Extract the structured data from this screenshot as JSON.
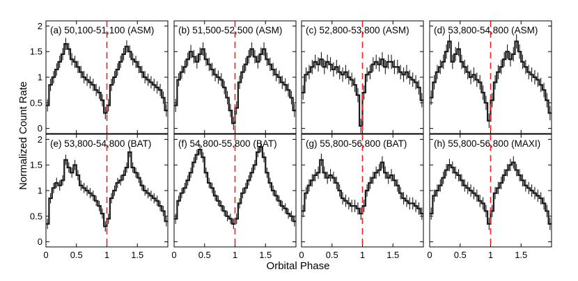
{
  "chart_data": {
    "type": "line",
    "xlabel": "Orbital Phase",
    "ylabel": "Normalized Count Rate",
    "xlim": [
      0,
      2
    ],
    "ylim": [
      -0.1,
      2.1
    ],
    "x_ticks": [
      0,
      0.5,
      1,
      1.5
    ],
    "x_tick_labels": [
      "0",
      "0.5",
      "1",
      "1.5"
    ],
    "y_ticks": [
      0,
      0.5,
      1,
      1.5,
      2
    ],
    "y_tick_labels": [
      "0",
      "0.5",
      "1",
      "1.5",
      "2"
    ],
    "reference_line": {
      "x": 1,
      "style": "dashed",
      "color": "#e8231f"
    },
    "line_color": "#1a1a1a",
    "grid": false,
    "layout": "2 rows x 4 columns, shared axes",
    "panels": [
      {
        "label": "(a) 50,100-51,100 (ASM)",
        "x": [
          0.025,
          0.075,
          0.125,
          0.175,
          0.225,
          0.275,
          0.325,
          0.375,
          0.425,
          0.475,
          0.525,
          0.575,
          0.625,
          0.675,
          0.725,
          0.775,
          0.825,
          0.875,
          0.925,
          0.975,
          1.025,
          1.075,
          1.125,
          1.175,
          1.225,
          1.275,
          1.325,
          1.375,
          1.425,
          1.475,
          1.525,
          1.575,
          1.625,
          1.675,
          1.725,
          1.775,
          1.825,
          1.875,
          1.925,
          1.975
        ],
        "y": [
          0.45,
          0.85,
          1.0,
          1.15,
          1.3,
          1.45,
          1.65,
          1.55,
          1.35,
          1.3,
          1.2,
          1.1,
          1.0,
          0.95,
          0.9,
          0.85,
          0.75,
          0.7,
          0.55,
          0.3,
          0.45,
          0.85,
          1.0,
          1.15,
          1.3,
          1.45,
          1.6,
          1.5,
          1.35,
          1.3,
          1.2,
          1.1,
          1.0,
          0.95,
          0.9,
          0.85,
          0.8,
          0.75,
          0.6,
          0.35
        ],
        "err": [
          0.12,
          0.12,
          0.12,
          0.12,
          0.12,
          0.12,
          0.12,
          0.12,
          0.12,
          0.12,
          0.12,
          0.12,
          0.12,
          0.12,
          0.12,
          0.12,
          0.12,
          0.12,
          0.12,
          0.12,
          0.12,
          0.12,
          0.12,
          0.12,
          0.12,
          0.12,
          0.12,
          0.12,
          0.12,
          0.12,
          0.12,
          0.12,
          0.12,
          0.12,
          0.12,
          0.12,
          0.12,
          0.12,
          0.12,
          0.12
        ]
      },
      {
        "label": "(b) 51,500-52,500 (ASM)",
        "x": [
          0.025,
          0.075,
          0.125,
          0.175,
          0.225,
          0.275,
          0.325,
          0.375,
          0.425,
          0.475,
          0.525,
          0.575,
          0.625,
          0.675,
          0.725,
          0.775,
          0.825,
          0.875,
          0.925,
          0.975,
          1.025,
          1.075,
          1.125,
          1.175,
          1.225,
          1.275,
          1.325,
          1.375,
          1.425,
          1.475,
          1.525,
          1.575,
          1.625,
          1.675,
          1.725,
          1.775,
          1.825,
          1.875,
          1.925,
          1.975
        ],
        "y": [
          0.45,
          0.95,
          1.1,
          1.2,
          1.35,
          1.5,
          1.4,
          1.3,
          1.45,
          1.55,
          1.35,
          1.25,
          1.15,
          1.05,
          1.0,
          0.95,
          0.8,
          0.6,
          0.35,
          0.1,
          0.4,
          0.9,
          1.1,
          1.25,
          1.4,
          1.55,
          1.4,
          1.3,
          1.45,
          1.55,
          1.35,
          1.25,
          1.15,
          1.05,
          1.0,
          0.9,
          0.85,
          0.75,
          0.6,
          0.35
        ],
        "err": [
          0.13,
          0.13,
          0.13,
          0.13,
          0.13,
          0.13,
          0.13,
          0.13,
          0.13,
          0.13,
          0.13,
          0.13,
          0.13,
          0.13,
          0.13,
          0.13,
          0.13,
          0.13,
          0.13,
          0.13,
          0.13,
          0.13,
          0.13,
          0.13,
          0.13,
          0.13,
          0.13,
          0.13,
          0.13,
          0.13,
          0.13,
          0.13,
          0.13,
          0.13,
          0.13,
          0.13,
          0.13,
          0.13,
          0.13,
          0.13
        ]
      },
      {
        "label": "(c) 52,800-53,800 (ASM)",
        "x": [
          0.025,
          0.075,
          0.125,
          0.175,
          0.225,
          0.275,
          0.325,
          0.375,
          0.425,
          0.475,
          0.525,
          0.575,
          0.625,
          0.675,
          0.725,
          0.775,
          0.825,
          0.875,
          0.925,
          0.975,
          1.025,
          1.075,
          1.125,
          1.175,
          1.225,
          1.275,
          1.325,
          1.375,
          1.425,
          1.475,
          1.525,
          1.575,
          1.625,
          1.675,
          1.725,
          1.775,
          1.825,
          1.875,
          1.925,
          1.975
        ],
        "y": [
          0.7,
          1.05,
          1.1,
          1.2,
          1.3,
          1.25,
          1.35,
          1.2,
          1.3,
          1.25,
          1.15,
          1.2,
          1.1,
          1.05,
          1.1,
          1.0,
          0.95,
          0.85,
          0.65,
          0.05,
          0.7,
          1.05,
          1.1,
          1.25,
          1.3,
          1.25,
          1.35,
          1.2,
          1.3,
          1.3,
          1.2,
          1.2,
          1.1,
          1.05,
          1.1,
          1.0,
          0.95,
          0.9,
          0.8,
          0.55
        ],
        "err": [
          0.14,
          0.14,
          0.14,
          0.14,
          0.14,
          0.14,
          0.14,
          0.14,
          0.14,
          0.14,
          0.14,
          0.14,
          0.14,
          0.14,
          0.14,
          0.14,
          0.14,
          0.14,
          0.14,
          0.14,
          0.14,
          0.14,
          0.14,
          0.14,
          0.14,
          0.14,
          0.14,
          0.14,
          0.14,
          0.14,
          0.14,
          0.14,
          0.14,
          0.14,
          0.14,
          0.14,
          0.14,
          0.14,
          0.14,
          0.14
        ]
      },
      {
        "label": "(d) 53,800-54,800 (ASM)",
        "x": [
          0.025,
          0.075,
          0.125,
          0.175,
          0.225,
          0.275,
          0.325,
          0.375,
          0.425,
          0.475,
          0.525,
          0.575,
          0.625,
          0.675,
          0.725,
          0.775,
          0.825,
          0.875,
          0.925,
          0.975,
          1.025,
          1.075,
          1.125,
          1.175,
          1.225,
          1.275,
          1.325,
          1.375,
          1.425,
          1.475,
          1.525,
          1.575,
          1.625,
          1.675,
          1.725,
          1.775,
          1.825,
          1.875,
          1.925,
          1.975
        ],
        "y": [
          0.6,
          0.9,
          1.1,
          1.2,
          1.3,
          1.5,
          1.7,
          1.3,
          1.45,
          1.55,
          1.3,
          1.2,
          1.1,
          1.0,
          1.05,
          0.95,
          0.9,
          0.7,
          0.5,
          0.15,
          0.55,
          0.9,
          1.1,
          1.2,
          1.35,
          1.5,
          1.35,
          1.45,
          1.7,
          1.5,
          1.3,
          1.2,
          1.1,
          1.05,
          1.0,
          0.95,
          0.85,
          0.75,
          0.55,
          0.3
        ],
        "err": [
          0.14,
          0.14,
          0.14,
          0.14,
          0.14,
          0.14,
          0.14,
          0.14,
          0.14,
          0.14,
          0.14,
          0.14,
          0.14,
          0.14,
          0.14,
          0.14,
          0.14,
          0.14,
          0.14,
          0.14,
          0.14,
          0.14,
          0.14,
          0.14,
          0.14,
          0.14,
          0.14,
          0.14,
          0.14,
          0.14,
          0.14,
          0.14,
          0.14,
          0.14,
          0.14,
          0.14,
          0.14,
          0.14,
          0.14,
          0.14
        ]
      },
      {
        "label": "(e) 53,800-54,800 (BAT)",
        "x": [
          0.025,
          0.075,
          0.125,
          0.175,
          0.225,
          0.275,
          0.325,
          0.375,
          0.425,
          0.475,
          0.525,
          0.575,
          0.625,
          0.675,
          0.725,
          0.775,
          0.825,
          0.875,
          0.925,
          0.975,
          1.025,
          1.075,
          1.125,
          1.175,
          1.225,
          1.275,
          1.325,
          1.375,
          1.425,
          1.475,
          1.525,
          1.575,
          1.625,
          1.675,
          1.725,
          1.775,
          1.825,
          1.875,
          1.925,
          1.975
        ],
        "y": [
          0.35,
          0.85,
          1.05,
          1.15,
          1.1,
          1.2,
          1.6,
          1.45,
          1.35,
          1.5,
          1.3,
          1.1,
          1.05,
          1.0,
          0.95,
          0.9,
          0.8,
          0.7,
          0.55,
          0.3,
          0.45,
          0.85,
          1.0,
          1.15,
          1.2,
          1.3,
          1.45,
          1.75,
          1.45,
          1.35,
          1.25,
          1.1,
          1.0,
          0.95,
          0.9,
          0.85,
          0.8,
          0.7,
          0.6,
          0.4
        ],
        "err": [
          0.1,
          0.1,
          0.1,
          0.1,
          0.1,
          0.1,
          0.1,
          0.1,
          0.1,
          0.1,
          0.1,
          0.1,
          0.1,
          0.1,
          0.1,
          0.1,
          0.1,
          0.1,
          0.1,
          0.1,
          0.1,
          0.1,
          0.1,
          0.1,
          0.1,
          0.1,
          0.1,
          0.1,
          0.1,
          0.1,
          0.1,
          0.1,
          0.1,
          0.1,
          0.1,
          0.1,
          0.1,
          0.1,
          0.1,
          0.1
        ]
      },
      {
        "label": "(f) 54,800-55,800 (BAT)",
        "x": [
          0.025,
          0.075,
          0.125,
          0.175,
          0.225,
          0.275,
          0.325,
          0.375,
          0.425,
          0.475,
          0.525,
          0.575,
          0.625,
          0.675,
          0.725,
          0.775,
          0.825,
          0.875,
          0.925,
          0.975,
          1.025,
          1.075,
          1.125,
          1.175,
          1.225,
          1.275,
          1.325,
          1.375,
          1.425,
          1.475,
          1.525,
          1.575,
          1.625,
          1.675,
          1.725,
          1.775,
          1.825,
          1.875,
          1.925,
          1.975
        ],
        "y": [
          0.45,
          0.8,
          0.95,
          1.05,
          1.2,
          1.35,
          1.55,
          1.7,
          1.8,
          1.65,
          1.35,
          1.15,
          1.05,
          0.9,
          0.8,
          0.7,
          0.6,
          0.5,
          0.45,
          0.35,
          0.45,
          0.75,
          0.95,
          1.05,
          1.2,
          1.35,
          1.5,
          1.75,
          1.85,
          1.65,
          1.35,
          1.15,
          1.0,
          0.9,
          0.8,
          0.7,
          0.65,
          0.55,
          0.5,
          0.4
        ],
        "err": [
          0.1,
          0.1,
          0.1,
          0.1,
          0.1,
          0.1,
          0.1,
          0.1,
          0.1,
          0.1,
          0.1,
          0.1,
          0.1,
          0.1,
          0.1,
          0.1,
          0.1,
          0.1,
          0.1,
          0.1,
          0.1,
          0.1,
          0.1,
          0.1,
          0.1,
          0.1,
          0.1,
          0.1,
          0.1,
          0.1,
          0.1,
          0.1,
          0.1,
          0.1,
          0.1,
          0.1,
          0.1,
          0.1,
          0.1,
          0.1
        ]
      },
      {
        "label": "(g) 55,800-56,800 (BAT)",
        "x": [
          0.025,
          0.075,
          0.125,
          0.175,
          0.225,
          0.275,
          0.325,
          0.375,
          0.425,
          0.475,
          0.525,
          0.575,
          0.625,
          0.675,
          0.725,
          0.775,
          0.825,
          0.875,
          0.925,
          0.975,
          1.025,
          1.075,
          1.125,
          1.175,
          1.225,
          1.275,
          1.325,
          1.375,
          1.425,
          1.475,
          1.525,
          1.575,
          1.625,
          1.675,
          1.725,
          1.775,
          1.825,
          1.875,
          1.925,
          1.975
        ],
        "y": [
          0.6,
          0.95,
          1.1,
          1.2,
          1.3,
          1.35,
          1.6,
          1.35,
          1.25,
          1.3,
          1.25,
          1.15,
          1.0,
          0.85,
          0.8,
          0.75,
          0.7,
          0.7,
          0.65,
          0.55,
          0.7,
          1.0,
          1.15,
          1.25,
          1.35,
          1.4,
          1.55,
          1.35,
          1.25,
          1.3,
          1.2,
          1.1,
          0.95,
          0.85,
          0.8,
          0.75,
          0.75,
          0.7,
          0.65,
          0.55
        ],
        "err": [
          0.12,
          0.12,
          0.12,
          0.12,
          0.12,
          0.12,
          0.12,
          0.12,
          0.12,
          0.12,
          0.12,
          0.12,
          0.12,
          0.12,
          0.12,
          0.12,
          0.12,
          0.12,
          0.12,
          0.12,
          0.12,
          0.12,
          0.12,
          0.12,
          0.12,
          0.12,
          0.12,
          0.12,
          0.12,
          0.12,
          0.12,
          0.12,
          0.12,
          0.12,
          0.12,
          0.12,
          0.12,
          0.12,
          0.12,
          0.12
        ]
      },
      {
        "label": "(h) 55,800-56,800 (MAXI)",
        "x": [
          0.025,
          0.075,
          0.125,
          0.175,
          0.225,
          0.275,
          0.325,
          0.375,
          0.425,
          0.475,
          0.525,
          0.575,
          0.625,
          0.675,
          0.725,
          0.775,
          0.825,
          0.875,
          0.925,
          0.975,
          1.025,
          1.075,
          1.125,
          1.175,
          1.225,
          1.275,
          1.325,
          1.375,
          1.425,
          1.475,
          1.525,
          1.575,
          1.625,
          1.675,
          1.725,
          1.775,
          1.825,
          1.875,
          1.925,
          1.975
        ],
        "y": [
          0.55,
          0.9,
          1.0,
          1.1,
          1.25,
          1.4,
          1.5,
          1.45,
          1.35,
          1.3,
          1.2,
          1.1,
          1.05,
          1.0,
          0.95,
          0.9,
          0.8,
          0.75,
          0.6,
          0.35,
          0.6,
          0.95,
          1.05,
          1.15,
          1.3,
          1.4,
          1.5,
          1.55,
          1.4,
          1.3,
          1.2,
          1.1,
          1.05,
          1.0,
          0.95,
          0.9,
          0.85,
          0.75,
          0.6,
          0.35
        ],
        "err": [
          0.12,
          0.12,
          0.12,
          0.12,
          0.12,
          0.12,
          0.12,
          0.12,
          0.12,
          0.12,
          0.12,
          0.12,
          0.12,
          0.12,
          0.12,
          0.12,
          0.12,
          0.12,
          0.12,
          0.12,
          0.12,
          0.12,
          0.12,
          0.12,
          0.12,
          0.12,
          0.12,
          0.12,
          0.12,
          0.12,
          0.12,
          0.12,
          0.12,
          0.12,
          0.12,
          0.12,
          0.12,
          0.12,
          0.12,
          0.12
        ]
      }
    ]
  }
}
